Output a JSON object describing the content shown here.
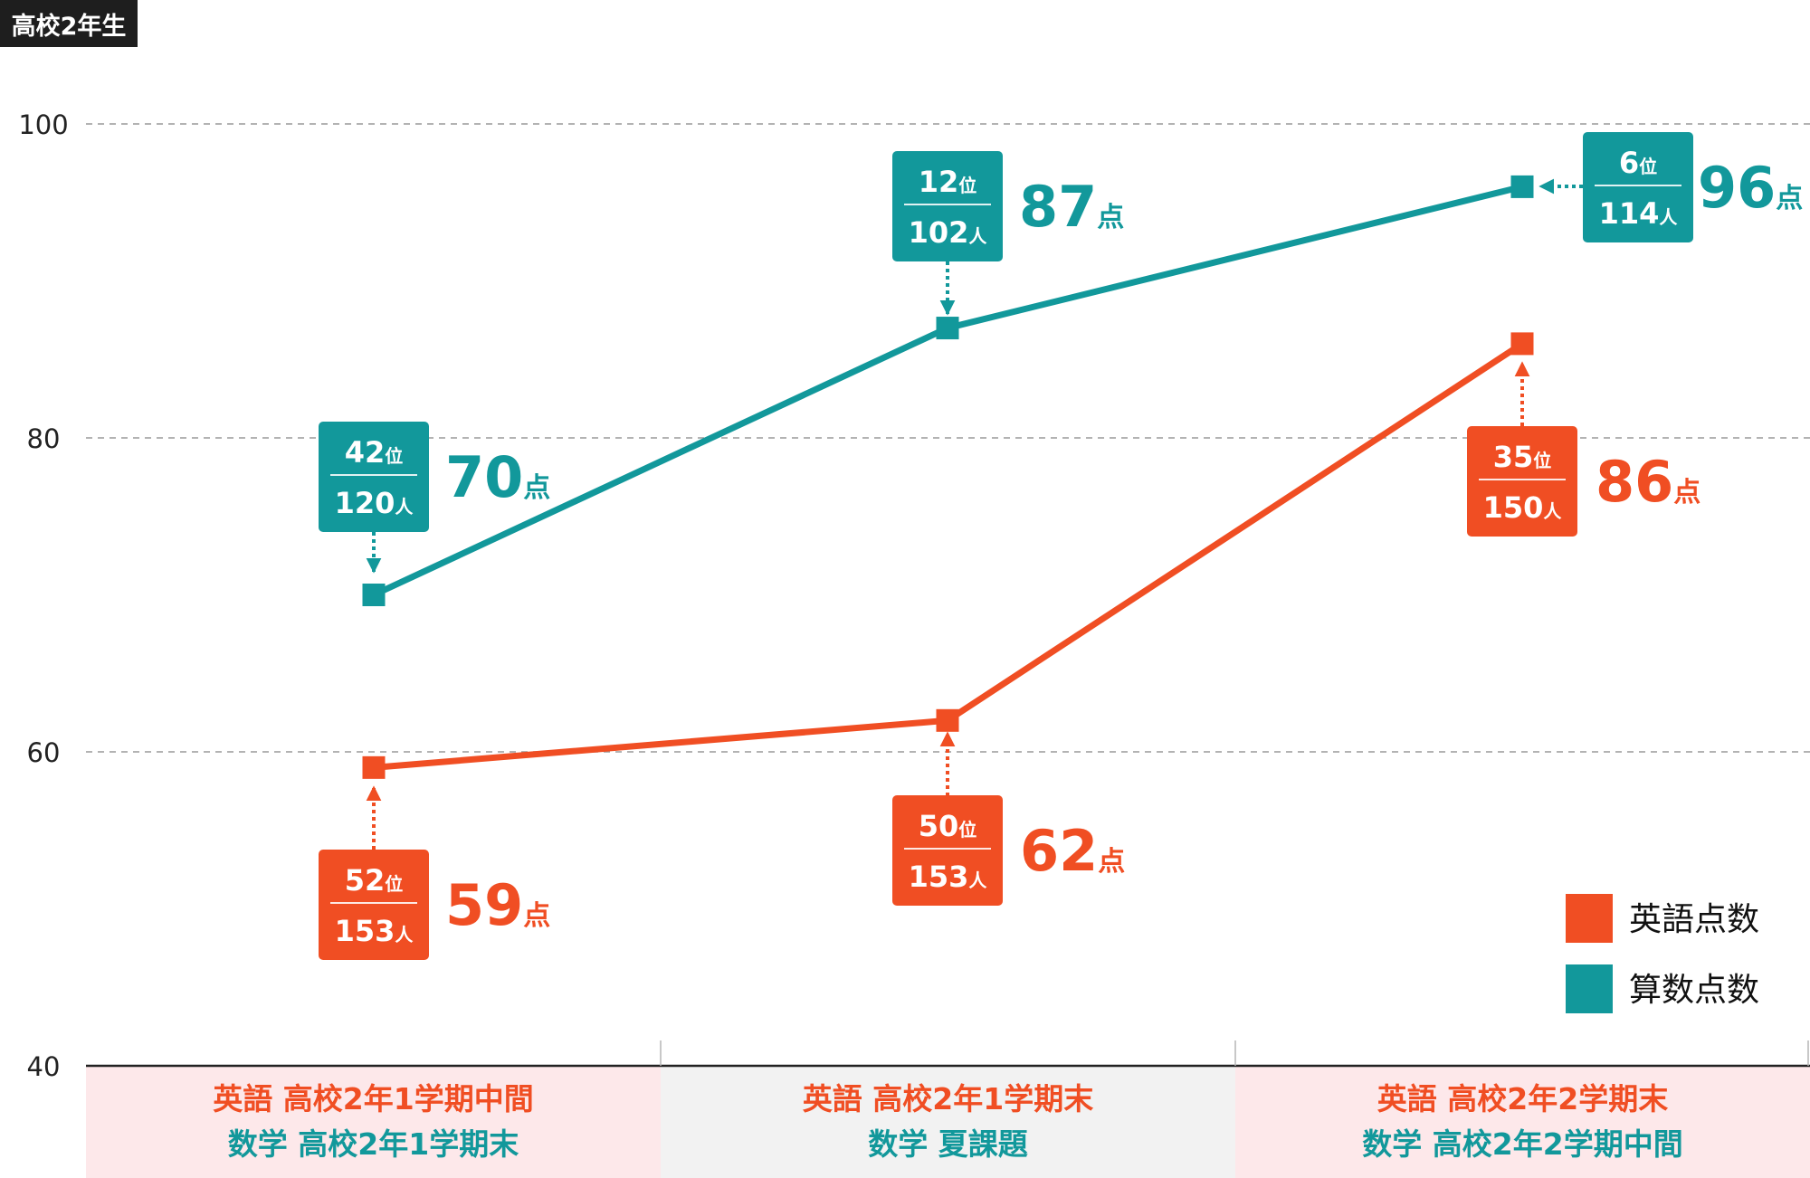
{
  "corner_label": "高校2年生",
  "colors": {
    "english": "#f04e23",
    "math": "#12989b",
    "grid": "#9a9a9a",
    "axis": "#222222",
    "band_pink": "#fde8ea",
    "band_gray": "#f2f2f2"
  },
  "chart_data": {
    "type": "line",
    "categories": [
      [
        "英語 高校2年1学期中間",
        "数学 高校2年1学期末"
      ],
      [
        "英語 高校2年1学期末",
        "数学 夏課題"
      ],
      [
        "英語 高校2年2学期末",
        "数学 高校2年2学期中間"
      ]
    ],
    "ylim": [
      40,
      100
    ],
    "yticks": [
      "40",
      "60",
      "80",
      "100"
    ],
    "grid": true,
    "legend_position": "bottom-right",
    "series": [
      {
        "key": "english",
        "name": "英語点数",
        "values": [
          59,
          62,
          86
        ],
        "labels": [
          {
            "rank": "52",
            "rank_unit": "位",
            "total": "153",
            "total_unit": "人",
            "score": "59",
            "score_unit": "点"
          },
          {
            "rank": "50",
            "rank_unit": "位",
            "total": "153",
            "total_unit": "人",
            "score": "62",
            "score_unit": "点"
          },
          {
            "rank": "35",
            "rank_unit": "位",
            "total": "150",
            "total_unit": "人",
            "score": "86",
            "score_unit": "点"
          }
        ]
      },
      {
        "key": "math",
        "name": "算数点数",
        "values": [
          70,
          87,
          96
        ],
        "labels": [
          {
            "rank": "42",
            "rank_unit": "位",
            "total": "120",
            "total_unit": "人",
            "score": "70",
            "score_unit": "点"
          },
          {
            "rank": "12",
            "rank_unit": "位",
            "total": "102",
            "total_unit": "人",
            "score": "87",
            "score_unit": "点"
          },
          {
            "rank": "6",
            "rank_unit": "位",
            "total": "114",
            "total_unit": "人",
            "score": "96",
            "score_unit": "点"
          }
        ]
      }
    ]
  }
}
